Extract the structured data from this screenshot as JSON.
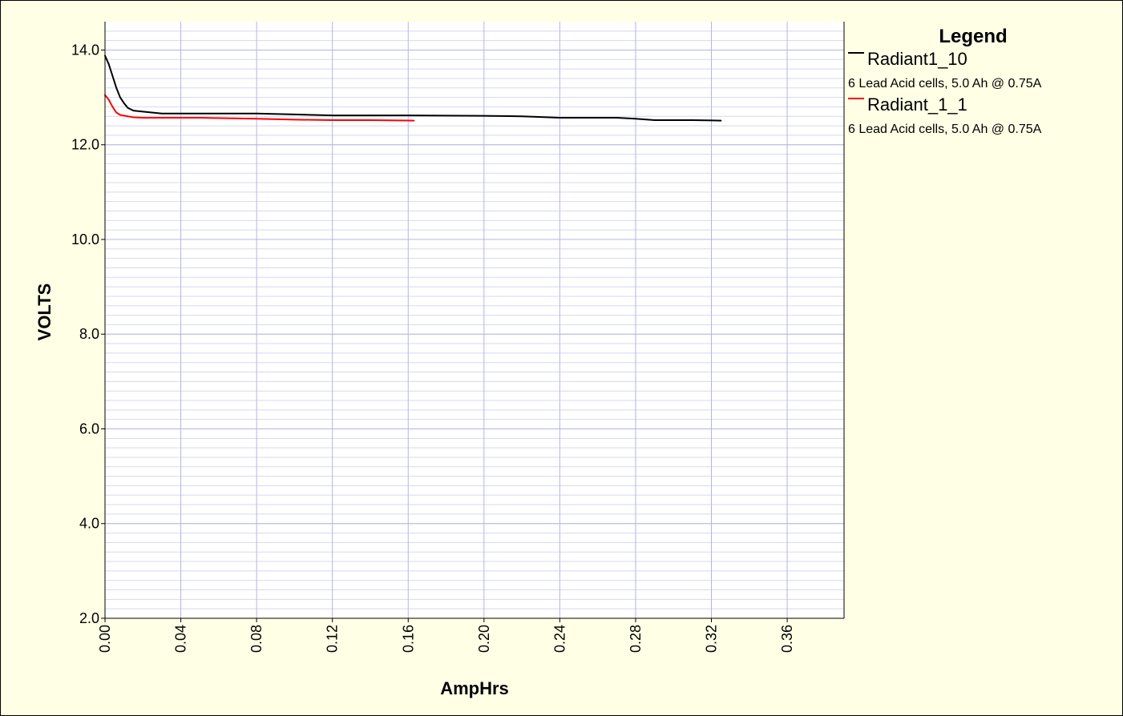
{
  "chart_data": {
    "type": "line",
    "title": "",
    "xlabel": "AmpHrs",
    "ylabel": "VOLTS",
    "xlim": [
      0.0,
      0.39
    ],
    "ylim": [
      2.0,
      14.6
    ],
    "x_ticks": [
      "0.00",
      "0.04",
      "0.08",
      "0.12",
      "0.16",
      "0.20",
      "0.24",
      "0.28",
      "0.32",
      "0.36"
    ],
    "y_ticks": [
      "2.0",
      "4.0",
      "6.0",
      "8.0",
      "10.0",
      "12.0",
      "14.0"
    ],
    "grid": true,
    "legend": {
      "title": "Legend",
      "position": "right"
    },
    "series": [
      {
        "name": "Radiant1_10",
        "description": "6 Lead Acid cells, 5.0 Ah @ 0.75A",
        "color": "#000000",
        "points": [
          [
            0.0,
            13.88
          ],
          [
            0.002,
            13.7
          ],
          [
            0.004,
            13.45
          ],
          [
            0.006,
            13.2
          ],
          [
            0.008,
            13.0
          ],
          [
            0.01,
            12.88
          ],
          [
            0.012,
            12.78
          ],
          [
            0.015,
            12.72
          ],
          [
            0.02,
            12.7
          ],
          [
            0.03,
            12.66
          ],
          [
            0.05,
            12.66
          ],
          [
            0.08,
            12.66
          ],
          [
            0.1,
            12.64
          ],
          [
            0.12,
            12.62
          ],
          [
            0.16,
            12.62
          ],
          [
            0.2,
            12.61
          ],
          [
            0.22,
            12.6
          ],
          [
            0.24,
            12.57
          ],
          [
            0.27,
            12.57
          ],
          [
            0.28,
            12.55
          ],
          [
            0.29,
            12.52
          ],
          [
            0.31,
            12.52
          ],
          [
            0.325,
            12.51
          ]
        ]
      },
      {
        "name": "Radiant_1_1",
        "description": "6 Lead Acid cells, 5.0 Ah @ 0.75A",
        "color": "#ff0000",
        "points": [
          [
            0.0,
            13.05
          ],
          [
            0.002,
            12.95
          ],
          [
            0.004,
            12.8
          ],
          [
            0.006,
            12.68
          ],
          [
            0.008,
            12.63
          ],
          [
            0.012,
            12.6
          ],
          [
            0.015,
            12.58
          ],
          [
            0.02,
            12.57
          ],
          [
            0.05,
            12.57
          ],
          [
            0.08,
            12.55
          ],
          [
            0.1,
            12.53
          ],
          [
            0.12,
            12.52
          ],
          [
            0.14,
            12.52
          ],
          [
            0.163,
            12.51
          ]
        ]
      }
    ]
  }
}
